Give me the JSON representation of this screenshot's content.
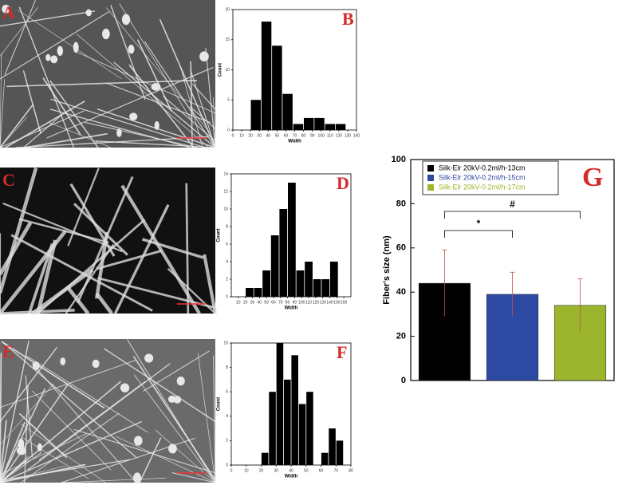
{
  "images": [
    {
      "label": "A"
    },
    {
      "label": "C"
    },
    {
      "label": "E"
    }
  ],
  "chart_data": [
    {
      "type": "histogram",
      "label": "B",
      "xlabel": "Width",
      "ylabel": "Count",
      "color": "#000000",
      "bins": [
        20,
        32,
        44,
        56,
        68,
        80,
        92,
        104,
        116,
        128
      ],
      "counts": [
        5,
        18,
        14,
        6,
        1,
        2,
        2,
        1,
        1
      ],
      "xlim": [
        0,
        140
      ],
      "xticks": [
        0,
        10,
        20,
        30,
        40,
        50,
        60,
        70,
        80,
        90,
        100,
        110,
        120,
        130,
        140
      ],
      "ylim": [
        0,
        20
      ],
      "yticks": [
        0,
        5,
        10,
        15,
        20
      ]
    },
    {
      "type": "histogram",
      "label": "D",
      "xlabel": "Width",
      "ylabel": "Count",
      "color": "#000000",
      "bins": [
        20,
        32,
        44,
        56,
        68,
        80,
        92,
        104,
        116,
        128,
        140,
        152
      ],
      "counts": [
        1,
        1,
        3,
        7,
        10,
        13,
        3,
        4,
        2,
        2,
        4
      ],
      "xlim": [
        0,
        170
      ],
      "xticks": [
        10,
        20,
        30,
        40,
        50,
        60,
        70,
        80,
        90,
        100,
        110,
        120,
        130,
        140,
        150,
        160
      ],
      "ylim": [
        0,
        14
      ],
      "yticks": [
        0,
        2,
        4,
        6,
        8,
        10,
        12,
        14
      ]
    },
    {
      "type": "histogram",
      "label": "F",
      "xlabel": "Width",
      "ylabel": "Count",
      "color": "#000000",
      "bins": [
        20,
        25,
        30,
        35,
        40,
        45,
        50,
        55,
        60,
        65,
        70,
        75
      ],
      "counts": [
        1,
        6,
        10,
        7,
        9,
        5,
        6,
        0,
        1,
        3,
        2
      ],
      "xlim": [
        0,
        80
      ],
      "xticks": [
        0,
        10,
        20,
        30,
        40,
        50,
        60,
        70,
        80
      ],
      "ylim": [
        0,
        10
      ],
      "yticks": [
        0,
        2,
        4,
        6,
        8,
        10
      ]
    },
    {
      "type": "bar",
      "label": "G",
      "ylabel": "Fiber's size (nm)",
      "series": [
        {
          "name": "Silk-Elr 20kV-0.2ml/h-13cm",
          "color": "#000000",
          "values": [
            44
          ],
          "errors": [
            15
          ]
        },
        {
          "name": "Silk-Elr 20kV-0.2ml/h-15cm",
          "color": "#2d4aa3",
          "values": [
            39
          ],
          "errors": [
            10
          ]
        },
        {
          "name": "Silk-Elr 20kV-0.2ml/h-17cm",
          "color": "#9bb52c",
          "values": [
            34
          ],
          "errors": [
            12
          ]
        }
      ],
      "annotations": [
        {
          "text": "*"
        },
        {
          "text": "#"
        }
      ],
      "ylim": [
        0,
        100
      ],
      "yticks": [
        0,
        20,
        40,
        60,
        80,
        100
      ]
    }
  ]
}
